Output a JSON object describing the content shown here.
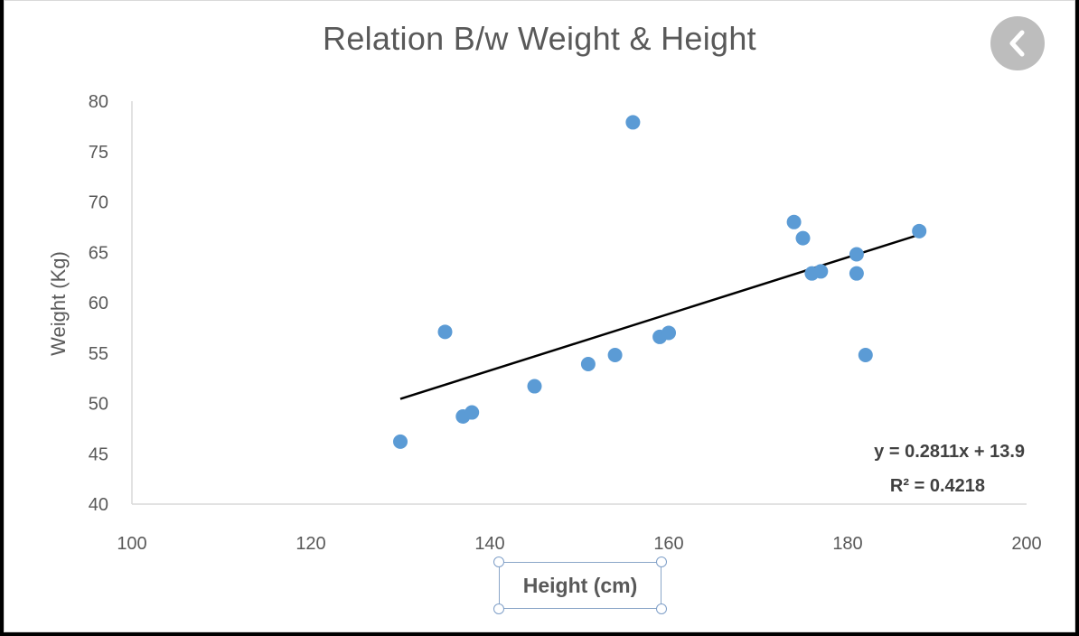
{
  "icons": {
    "back": "chevron-left-icon"
  },
  "chart_data": {
    "type": "scatter",
    "title": "Relation B/w Weight & Height",
    "xlabel": "Height (cm)",
    "ylabel": "Weight (Kg)",
    "xlim": [
      100,
      200
    ],
    "ylim": [
      40,
      80
    ],
    "xticks": [
      100,
      120,
      140,
      160,
      180,
      200
    ],
    "yticks": [
      40,
      45,
      50,
      55,
      60,
      65,
      70,
      75,
      80
    ],
    "grid": false,
    "point_color": "#5b9bd5",
    "trendline_color": "#000000",
    "points": [
      {
        "x": 130,
        "y": 46.2
      },
      {
        "x": 135,
        "y": 57.1
      },
      {
        "x": 137,
        "y": 48.7
      },
      {
        "x": 138,
        "y": 49.1
      },
      {
        "x": 145,
        "y": 51.7
      },
      {
        "x": 151,
        "y": 53.9
      },
      {
        "x": 154,
        "y": 54.8
      },
      {
        "x": 156,
        "y": 77.9
      },
      {
        "x": 159,
        "y": 56.6
      },
      {
        "x": 160,
        "y": 57.0
      },
      {
        "x": 174,
        "y": 68.0
      },
      {
        "x": 175,
        "y": 66.4
      },
      {
        "x": 176,
        "y": 62.9
      },
      {
        "x": 177,
        "y": 63.1
      },
      {
        "x": 181,
        "y": 64.8
      },
      {
        "x": 181,
        "y": 62.9
      },
      {
        "x": 182,
        "y": 54.8
      },
      {
        "x": 188,
        "y": 67.1
      }
    ],
    "trendline": {
      "slope": 0.2811,
      "intercept": 13.9,
      "x_range": [
        130,
        188
      ],
      "equation": "y = 0.2811x + 13.9",
      "r2": "R² = 0.4218"
    }
  }
}
